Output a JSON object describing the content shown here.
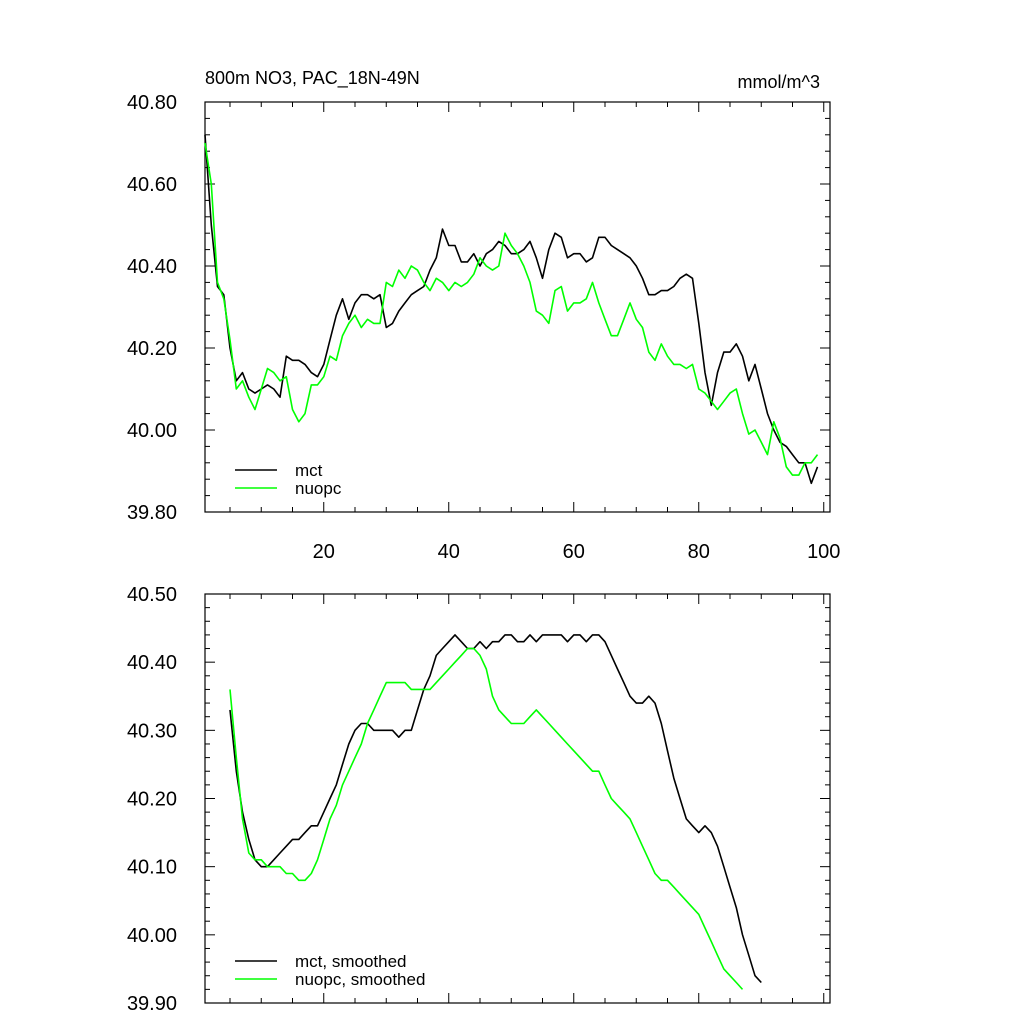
{
  "chart_data": [
    {
      "type": "line",
      "title": "800m NO3, PAC_18N-49N",
      "units": "mmol/m^3",
      "xlabel": "",
      "ylabel": "",
      "xlim": [
        1,
        101
      ],
      "ylim": [
        39.8,
        40.8
      ],
      "x_ticks": [
        20,
        40,
        60,
        80,
        100
      ],
      "y_ticks": [
        39.8,
        40.0,
        40.2,
        40.4,
        40.6,
        40.8
      ],
      "y_tick_labels": [
        "39.80",
        "40.00",
        "40.20",
        "40.40",
        "40.60",
        "40.80"
      ],
      "x_tick_labels": [
        "20",
        "40",
        "60",
        "80",
        "100"
      ],
      "legend": "bottom-left",
      "x_start": 1,
      "series": [
        {
          "name": "mct",
          "color": "#000000",
          "values": [
            40.72,
            40.5,
            40.35,
            40.33,
            40.2,
            40.12,
            40.14,
            40.1,
            40.09,
            40.1,
            40.11,
            40.1,
            40.08,
            40.18,
            40.17,
            40.17,
            40.16,
            40.14,
            40.13,
            40.16,
            40.22,
            40.28,
            40.32,
            40.27,
            40.31,
            40.33,
            40.33,
            40.32,
            40.33,
            40.25,
            40.26,
            40.29,
            40.31,
            40.33,
            40.34,
            40.35,
            40.39,
            40.42,
            40.49,
            40.45,
            40.45,
            40.41,
            40.41,
            40.43,
            40.4,
            40.43,
            40.44,
            40.46,
            40.45,
            40.43,
            40.43,
            40.44,
            40.46,
            40.42,
            40.37,
            40.44,
            40.48,
            40.47,
            40.42,
            40.43,
            40.43,
            40.41,
            40.42,
            40.47,
            40.47,
            40.45,
            40.44,
            40.43,
            40.42,
            40.4,
            40.37,
            40.33,
            40.33,
            40.34,
            40.34,
            40.35,
            40.37,
            40.38,
            40.37,
            40.26,
            40.14,
            40.06,
            40.14,
            40.19,
            40.19,
            40.21,
            40.18,
            40.12,
            40.16,
            40.1,
            40.04,
            40.0,
            39.97,
            39.96,
            39.94,
            39.92,
            39.92,
            39.87,
            39.91
          ]
        },
        {
          "name": "nuopc",
          "color": "#00ff00",
          "values": [
            40.7,
            40.6,
            40.36,
            40.32,
            40.22,
            40.1,
            40.12,
            40.08,
            40.05,
            40.1,
            40.15,
            40.14,
            40.12,
            40.13,
            40.05,
            40.02,
            40.04,
            40.11,
            40.11,
            40.13,
            40.18,
            40.17,
            40.23,
            40.26,
            40.28,
            40.25,
            40.27,
            40.26,
            40.26,
            40.36,
            40.35,
            40.39,
            40.37,
            40.4,
            40.39,
            40.36,
            40.34,
            40.37,
            40.36,
            40.34,
            40.36,
            40.35,
            40.36,
            40.38,
            40.42,
            40.4,
            40.39,
            40.4,
            40.48,
            40.45,
            40.43,
            40.4,
            40.36,
            40.29,
            40.28,
            40.26,
            40.34,
            40.35,
            40.29,
            40.31,
            40.31,
            40.32,
            40.36,
            40.31,
            40.27,
            40.23,
            40.23,
            40.27,
            40.31,
            40.27,
            40.25,
            40.19,
            40.17,
            40.21,
            40.18,
            40.16,
            40.16,
            40.15,
            40.16,
            40.1,
            40.09,
            40.07,
            40.05,
            40.07,
            40.09,
            40.1,
            40.04,
            39.99,
            40.0,
            39.97,
            39.94,
            40.02,
            39.98,
            39.91,
            39.89,
            39.89,
            39.92,
            39.92,
            39.94
          ]
        }
      ]
    },
    {
      "type": "line",
      "title": "",
      "xlabel": "",
      "ylabel": "",
      "xlim": [
        1,
        101
      ],
      "ylim": [
        39.9,
        40.5
      ],
      "x_ticks": [
        20,
        40,
        60,
        80,
        100
      ],
      "y_ticks": [
        39.9,
        40.0,
        40.1,
        40.2,
        40.3,
        40.4,
        40.5
      ],
      "y_tick_labels": [
        "39.90",
        "40.00",
        "40.10",
        "40.20",
        "40.30",
        "40.40",
        "40.50"
      ],
      "legend": "bottom-left",
      "x_start": 5,
      "series": [
        {
          "name": "mct, smoothed",
          "color": "#000000",
          "values": [
            40.33,
            40.24,
            40.18,
            40.14,
            40.11,
            40.1,
            40.1,
            40.11,
            40.12,
            40.13,
            40.14,
            40.14,
            40.15,
            40.16,
            40.16,
            40.18,
            40.2,
            40.22,
            40.25,
            40.28,
            40.3,
            40.31,
            40.31,
            40.3,
            40.3,
            40.3,
            40.3,
            40.29,
            40.3,
            40.3,
            40.33,
            40.36,
            40.38,
            40.41,
            40.42,
            40.43,
            40.44,
            40.43,
            40.42,
            40.42,
            40.43,
            40.42,
            40.43,
            40.43,
            40.44,
            40.44,
            40.43,
            40.43,
            40.44,
            40.43,
            40.44,
            40.44,
            40.44,
            40.44,
            40.43,
            40.44,
            40.44,
            40.43,
            40.44,
            40.44,
            40.43,
            40.41,
            40.39,
            40.37,
            40.35,
            40.34,
            40.34,
            40.35,
            40.34,
            40.31,
            40.27,
            40.23,
            40.2,
            40.17,
            40.16,
            40.15,
            40.16,
            40.15,
            40.13,
            40.1,
            40.07,
            40.04,
            40.0,
            39.97,
            39.94,
            39.93
          ]
        },
        {
          "name": "nuopc, smoothed",
          "color": "#00ff00",
          "values": [
            40.36,
            40.26,
            40.17,
            40.12,
            40.11,
            40.11,
            40.1,
            40.1,
            40.1,
            40.09,
            40.09,
            40.08,
            40.08,
            40.09,
            40.11,
            40.14,
            40.17,
            40.19,
            40.22,
            40.24,
            40.26,
            40.28,
            40.31,
            40.33,
            40.35,
            40.37,
            40.37,
            40.37,
            40.37,
            40.36,
            40.36,
            40.36,
            40.36,
            40.37,
            40.38,
            40.39,
            40.4,
            40.41,
            40.42,
            40.42,
            40.41,
            40.39,
            40.35,
            40.33,
            40.32,
            40.31,
            40.31,
            40.31,
            40.32,
            40.33,
            40.32,
            40.31,
            40.3,
            40.29,
            40.28,
            40.27,
            40.26,
            40.25,
            40.24,
            40.24,
            40.22,
            40.2,
            40.19,
            40.18,
            40.17,
            40.15,
            40.13,
            40.11,
            40.09,
            40.08,
            40.08,
            40.07,
            40.06,
            40.05,
            40.04,
            40.03,
            40.01,
            39.99,
            39.97,
            39.95,
            39.94,
            39.93,
            39.92
          ]
        }
      ]
    }
  ]
}
